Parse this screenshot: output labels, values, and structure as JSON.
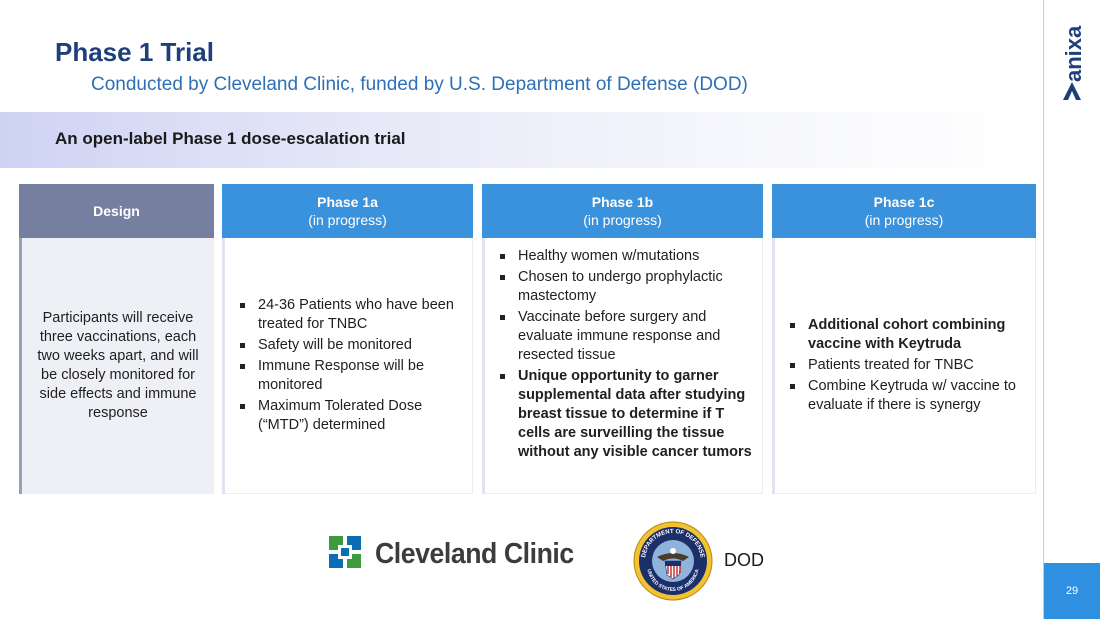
{
  "slide": {
    "title": "Phase 1 Trial",
    "subtitle": "Conducted by Cleveland Clinic, funded by U.S. Department of Defense (DOD)",
    "band_text": "An open-label Phase 1 dose-escalation trial",
    "brand": "anixa",
    "page_number": "29"
  },
  "columns": {
    "design": {
      "title": "Design",
      "body": "Participants will receive three vaccinations, each two weeks apart, and will be closely monitored for side effects and immune response"
    },
    "phase1a": {
      "title": "Phase 1a",
      "status": "(in progress)",
      "bullets": [
        "24-36 Patients who have been treated for TNBC",
        "Safety will be monitored",
        "Immune Response will be monitored",
        "Maximum Tolerated Dose (“MTD”) determined"
      ]
    },
    "phase1b": {
      "title": "Phase 1b",
      "status": "(in progress)",
      "bullets": [
        "Healthy women w/mutations",
        "Chosen to undergo prophylactic mastectomy",
        "Vaccinate before surgery and evaluate immune response and resected tissue",
        "Unique opportunity to garner supplemental data after studying breast tissue to determine if T cells are surveilling the tissue without any visible cancer tumors"
      ]
    },
    "phase1c": {
      "title": "Phase 1c",
      "status": "(in progress)",
      "bullets": [
        "Additional cohort combining vaccine with Keytruda",
        "Patients treated for TNBC",
        "Combine Keytruda w/ vaccine to evaluate if there is synergy"
      ]
    }
  },
  "logos": {
    "cleveland_clinic": "Cleveland Clinic",
    "dod_label": "DOD",
    "dod_seal_top": "DEPARTMENT OF DEFENSE",
    "dod_seal_bottom": "UNITED STATES OF AMERICA"
  },
  "colors": {
    "title": "#1f3f7a",
    "subtitle": "#2e6fb6",
    "phase_header": "#3a92dc",
    "design_header": "#767fa0",
    "cc_blue": "#0a6fb2",
    "cc_green": "#3d9a3d"
  }
}
